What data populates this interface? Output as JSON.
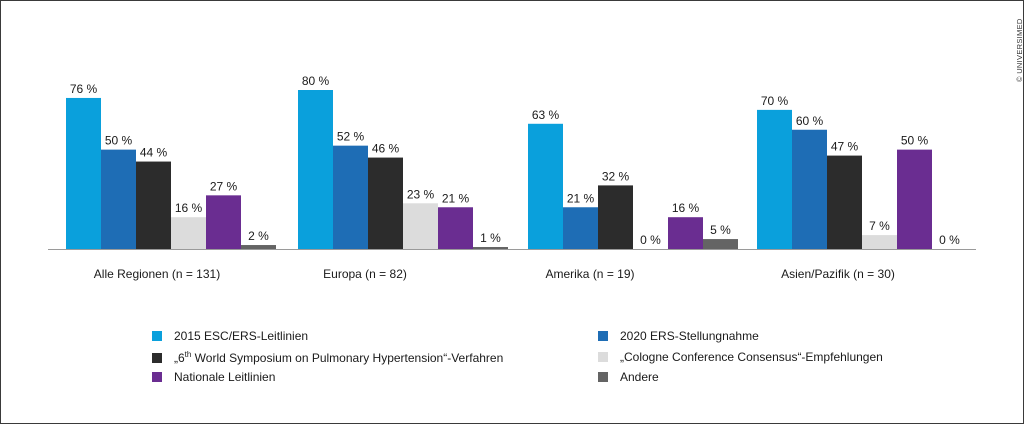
{
  "chart_data": {
    "type": "bar",
    "categories": [
      "Alle Regionen (n = 131)",
      "Europa (n = 82)",
      "Amerika (n = 19)",
      "Asien/Pazifik (n = 30)"
    ],
    "series": [
      {
        "name": "2015 ESC/ERS-Leitlinien",
        "values": [
          76,
          80,
          63,
          70
        ],
        "color": "#0aa0dc"
      },
      {
        "name": "2020 ERS-Stellungnahme",
        "values": [
          50,
          52,
          21,
          60
        ],
        "color": "#1e6db5"
      },
      {
        "name": "„6th World Symposium on Pulmonary Hypertension“-Verfahren",
        "values": [
          44,
          46,
          32,
          47
        ],
        "color": "#2c2c2c"
      },
      {
        "name": "„Cologne Conference Consensus“-Empfehlungen",
        "values": [
          16,
          23,
          0,
          7
        ],
        "color": "#dcdcdc"
      },
      {
        "name": "Nationale Leitlinien",
        "values": [
          27,
          21,
          16,
          50
        ],
        "color": "#6a2d91"
      },
      {
        "name": "Andere",
        "values": [
          2,
          1,
          5,
          0
        ],
        "color": "#646464"
      }
    ],
    "value_labels": [
      [
        "76 %",
        "80 %",
        "63 %",
        "70 %"
      ],
      [
        "50 %",
        "52 %",
        "21 %",
        "60 %"
      ],
      [
        "44 %",
        "46 %",
        "32 %",
        "47 %"
      ],
      [
        "16 %",
        "23 %",
        "0 %",
        "7 %"
      ],
      [
        "27 %",
        "21 %",
        "16 %",
        "50 %"
      ],
      [
        "2 %",
        "1 %",
        "5 %",
        "0 %"
      ]
    ],
    "ylim": [
      0,
      80
    ],
    "legend_position": "bottom",
    "grid": false
  },
  "legend": {
    "items": [
      {
        "label": "2015 ESC/ERS-Leitlinien",
        "color": "#0aa0dc"
      },
      {
        "label": "2020 ERS-Stellungnahme",
        "color": "#1e6db5"
      },
      {
        "label_pre": "„6",
        "label_sup": "th",
        "label_post": " World Symposium on Pulmonary Hypertension“-Verfahren",
        "color": "#2c2c2c"
      },
      {
        "label": "„Cologne Conference Consensus“-Empfehlungen",
        "color": "#dcdcdc"
      },
      {
        "label": "Nationale Leitlinien",
        "color": "#6a2d91"
      },
      {
        "label": "Andere",
        "color": "#646464"
      }
    ]
  },
  "credit": "© UNIVERSIMED"
}
